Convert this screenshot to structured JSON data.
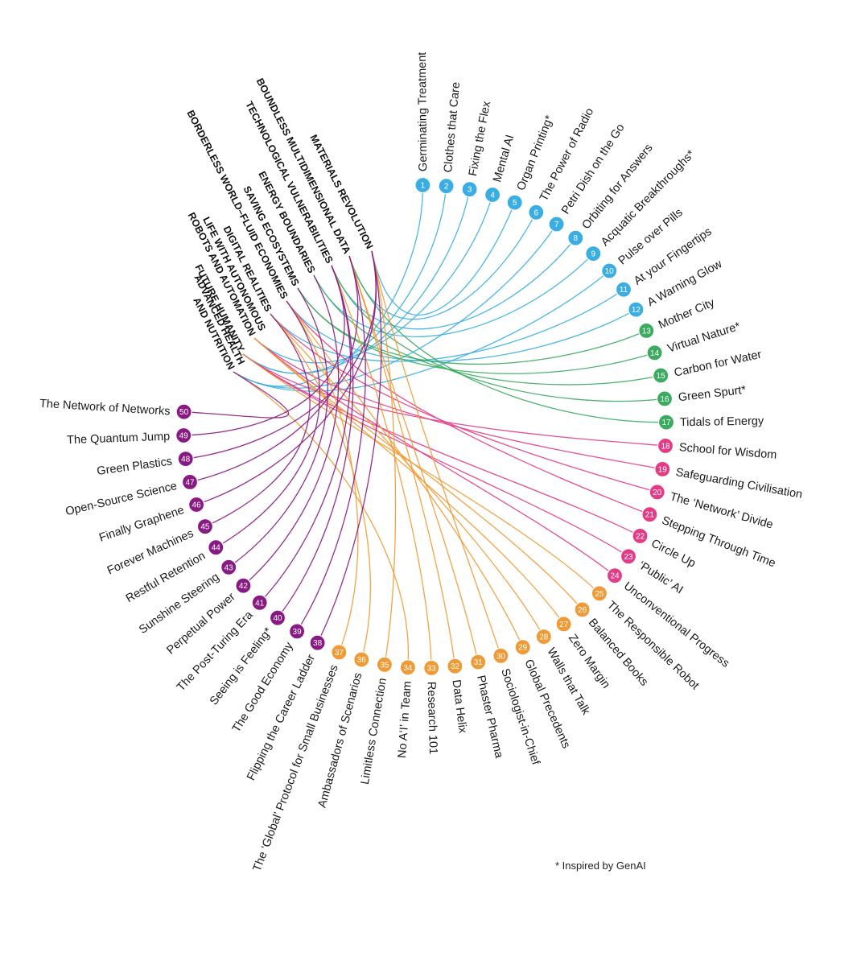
{
  "footnote": "* Inspired by GenAI",
  "colors": {
    "blue": "#3aaee3",
    "green": "#3bab5f",
    "pink": "#e23c86",
    "orange": "#ef9a34",
    "purple": "#8a1a83"
  },
  "themes": [
    {
      "id": 1,
      "lines": [
        "MATERIALS REVOLUTION"
      ]
    },
    {
      "id": 2,
      "lines": [
        "BOUNDLESS MULTIDIMENSIONAL DATA"
      ]
    },
    {
      "id": 3,
      "lines": [
        "TECHNOLOGICAL VULNERABILITIES"
      ]
    },
    {
      "id": 4,
      "lines": [
        "ENERGY BOUNDARIES"
      ]
    },
    {
      "id": 5,
      "lines": [
        "SAVING ECOSYSTEMS"
      ]
    },
    {
      "id": 6,
      "lines": [
        "BORDERLESS WORLD–FLUID ECONOMIES"
      ]
    },
    {
      "id": 7,
      "lines": [
        "DIGITAL REALITIES"
      ]
    },
    {
      "id": 8,
      "lines": [
        "LIFE WITH AUTONOMOUS",
        "ROBOTS AND AUTOMATION"
      ]
    },
    {
      "id": 9,
      "lines": [
        "FUTURE HUMANITY"
      ]
    },
    {
      "id": 10,
      "lines": [
        "ADVANCED HEALTH",
        "AND NUTRITION"
      ]
    }
  ],
  "scenarios": [
    {
      "n": "1",
      "label": "Germinating Treatment",
      "group": "blue"
    },
    {
      "n": "2",
      "label": "Clothes that Care",
      "group": "blue"
    },
    {
      "n": "3",
      "label": "Fixing the Flex",
      "group": "blue"
    },
    {
      "n": "4",
      "label": "Mental AI",
      "group": "blue"
    },
    {
      "n": "5",
      "label": "Organ Printing*",
      "group": "blue"
    },
    {
      "n": "6",
      "label": "The Power of Radio",
      "group": "blue"
    },
    {
      "n": "7",
      "label": "Petri Dish on the Go",
      "group": "blue"
    },
    {
      "n": "8",
      "label": "Orbiting for Answers",
      "group": "blue"
    },
    {
      "n": "9",
      "label": "Acquatic Breakthroughs*",
      "group": "blue"
    },
    {
      "n": "10",
      "label": "Pulse over Pills",
      "group": "blue"
    },
    {
      "n": "11",
      "label": "At your Fingertips",
      "group": "blue"
    },
    {
      "n": "12",
      "label": "A Warning Glow",
      "group": "blue"
    },
    {
      "n": "13",
      "label": "Mother City",
      "group": "green"
    },
    {
      "n": "14",
      "label": "Virtual Nature*",
      "group": "green"
    },
    {
      "n": "15",
      "label": "Carbon for Water",
      "group": "green"
    },
    {
      "n": "16",
      "label": "Green Spurt*",
      "group": "green"
    },
    {
      "n": "17",
      "label": "Tidals of Energy",
      "group": "green"
    },
    {
      "n": "18",
      "label": "School for Wisdom",
      "group": "pink"
    },
    {
      "n": "19",
      "label": "Safeguarding Civilisation",
      "group": "pink"
    },
    {
      "n": "20",
      "label": "The ‘Network’ Divide",
      "group": "pink"
    },
    {
      "n": "21",
      "label": "Stepping Through Time",
      "group": "pink"
    },
    {
      "n": "22",
      "label": "Circle Up",
      "group": "pink"
    },
    {
      "n": "23",
      "label": "‘Public’ AI",
      "group": "pink"
    },
    {
      "n": "24",
      "label": "Unconventional Progress",
      "group": "pink"
    },
    {
      "n": "25",
      "label": "The Responsible Robot",
      "group": "orange"
    },
    {
      "n": "26",
      "label": "Balanced Books",
      "group": "orange"
    },
    {
      "n": "27",
      "label": "Zero Margin",
      "group": "orange"
    },
    {
      "n": "28",
      "label": "Walls that Talk",
      "group": "orange"
    },
    {
      "n": "29",
      "label": "Global Precedents",
      "group": "orange"
    },
    {
      "n": "30",
      "label": "Sociologist-in-Chief",
      "group": "orange"
    },
    {
      "n": "31",
      "label": "Phaster Pharma",
      "group": "orange"
    },
    {
      "n": "32",
      "label": "Data Helix",
      "group": "orange"
    },
    {
      "n": "33",
      "label": "Research 101",
      "group": "orange"
    },
    {
      "n": "34",
      "label": "No A‘I’ in Team",
      "group": "orange"
    },
    {
      "n": "35",
      "label": "Limitless Connection",
      "group": "orange"
    },
    {
      "n": "36",
      "label": "Ambassadors of Scenarios",
      "group": "orange"
    },
    {
      "n": "37",
      "label": "The ‘Global’ Protocol for Small Businesses",
      "group": "orange"
    },
    {
      "n": "38",
      "label": "Flipping the Career Ladder",
      "group": "purple"
    },
    {
      "n": "39",
      "label": "The Good Economy",
      "group": "purple"
    },
    {
      "n": "40",
      "label": "Seeing is Feeling*",
      "group": "purple"
    },
    {
      "n": "41",
      "label": "The Post-Turing Era",
      "group": "purple"
    },
    {
      "n": "42",
      "label": "Perpetual Power",
      "group": "purple"
    },
    {
      "n": "43",
      "label": "Sunshine Steering",
      "group": "purple"
    },
    {
      "n": "44",
      "label": "Restful Retention",
      "group": "purple"
    },
    {
      "n": "45",
      "label": "Forever Machines",
      "group": "purple"
    },
    {
      "n": "46",
      "label": "Finally Graphene",
      "group": "purple"
    },
    {
      "n": "47",
      "label": "Open-Source Science",
      "group": "purple"
    },
    {
      "n": "48",
      "label": "Green Plastics",
      "group": "purple"
    },
    {
      "n": "49",
      "label": "The Quantum Jump",
      "group": "purple"
    },
    {
      "n": "50",
      "label": "The Network of Networks",
      "group": "purple"
    }
  ],
  "links": [
    [
      1,
      10
    ],
    [
      2,
      9
    ],
    [
      3,
      9
    ],
    [
      4,
      8
    ],
    [
      5,
      1
    ],
    [
      6,
      2
    ],
    [
      7,
      10
    ],
    [
      8,
      3
    ],
    [
      9,
      4
    ],
    [
      10,
      10
    ],
    [
      11,
      7
    ],
    [
      12,
      6
    ],
    [
      13,
      5
    ],
    [
      14,
      5
    ],
    [
      15,
      4
    ],
    [
      16,
      3
    ],
    [
      17,
      2
    ],
    [
      18,
      9
    ],
    [
      19,
      8
    ],
    [
      20,
      7
    ],
    [
      21,
      6
    ],
    [
      22,
      9
    ],
    [
      23,
      9
    ],
    [
      24,
      8
    ],
    [
      25,
      9
    ],
    [
      26,
      8
    ],
    [
      27,
      8
    ],
    [
      28,
      7
    ],
    [
      29,
      6
    ],
    [
      30,
      1
    ],
    [
      31,
      2
    ],
    [
      32,
      2
    ],
    [
      33,
      3
    ],
    [
      34,
      10
    ],
    [
      35,
      1
    ],
    [
      36,
      7
    ],
    [
      37,
      6
    ],
    [
      38,
      1
    ],
    [
      39,
      2
    ],
    [
      40,
      3
    ],
    [
      41,
      3
    ],
    [
      42,
      4
    ],
    [
      43,
      5
    ],
    [
      44,
      6
    ],
    [
      45,
      7
    ],
    [
      46,
      1
    ],
    [
      47,
      2
    ],
    [
      48,
      1
    ],
    [
      49,
      3
    ],
    [
      50,
      10
    ]
  ]
}
